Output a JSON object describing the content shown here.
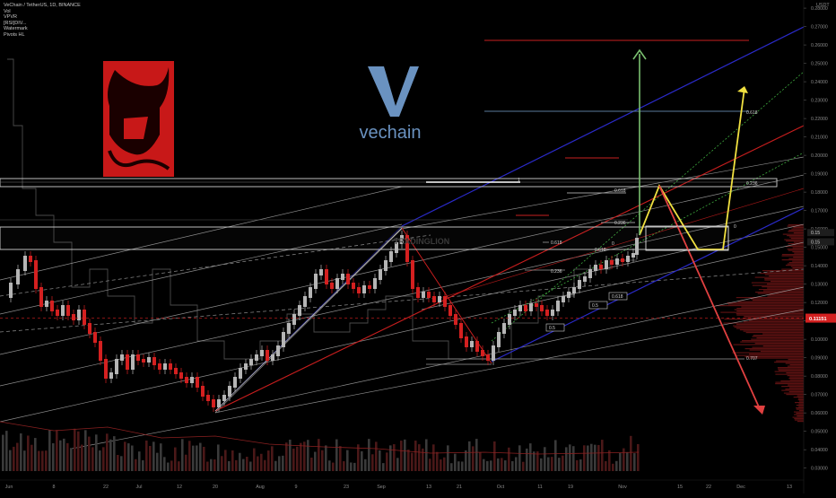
{
  "header": {
    "symbol_line": "VeChain / TetherUS, 1D, BINANCE",
    "studies": [
      "Vol",
      "VPVR",
      "[RSI]DIV...",
      "Watermark",
      "Pivots HL"
    ]
  },
  "brand": {
    "logo_text": "vechain",
    "watermark_text": "TRADINGLION"
  },
  "colors": {
    "background": "#000000",
    "bull": "#b5b5b5",
    "bear": "#d42020",
    "channel_blue": "#2a2ac8",
    "channel_red": "#c81e1e",
    "fib_green": "#3ea83e",
    "path_yellow": "#f0e040",
    "path_red": "#e04040",
    "arrow_green": "#7ac070",
    "price_tag": "#d42020"
  },
  "chart_data": {
    "type": "candlestick",
    "title": "VeChain / TetherUS, 1D, BINANCE",
    "ylim": [
      0.0235,
      0.2815
    ],
    "y_ticks": [
      0.28,
      0.27,
      0.26,
      0.25,
      0.24,
      0.23,
      0.22,
      0.21,
      0.2,
      0.19,
      0.18,
      0.17,
      0.16,
      0.15,
      0.14,
      0.13,
      0.12,
      0.11,
      0.1,
      0.09,
      0.08,
      0.07,
      0.06,
      0.05,
      0.04,
      0.03
    ],
    "y_tick_labels": [
      "0.28000",
      "0.27000",
      "0.26000",
      "0.25000",
      "0.24000",
      "0.23000",
      "0.22000",
      "0.21000",
      "0.20000",
      "0.19000",
      "0.18000",
      "0.17000",
      "0.16000",
      "0.15000",
      "0.14000",
      "0.13000",
      "0.12000",
      "0.11000",
      "0.10000",
      "0.09000",
      "0.08000",
      "0.07000",
      "0.06000",
      "0.05000",
      "0.04000",
      "0.03000"
    ],
    "axis_unit": "USDT",
    "x_labels": [
      "Jun",
      "8",
      "22",
      "Jul",
      "12",
      "20",
      "Aug",
      "9",
      "23",
      "Sep",
      "13",
      "21",
      "Oct",
      "11",
      "19",
      "Nov",
      "15",
      "22",
      "Dec",
      "13"
    ],
    "current_price": 0.11151,
    "current_price_label": "0.11151",
    "key_prices": [
      {
        "label": "0.15",
        "value": 0.158
      },
      {
        "label": "0.15",
        "value": 0.153
      }
    ],
    "highs_lows": {
      "high_sep": 0.156,
      "low_jul": 0.058,
      "low_sep": 0.082
    },
    "fib_levels": [
      {
        "label": "1",
        "value": 0.182
      },
      {
        "label": "0.236",
        "value": 0.182
      },
      {
        "label": "0.618",
        "value": 0.177
      },
      {
        "label": "0.618",
        "value": 0.222
      },
      {
        "label": "0.236",
        "value": 0.161
      },
      {
        "label": "0",
        "value": 0.159
      },
      {
        "label": "0.618",
        "value": 0.151
      },
      {
        "label": "0",
        "value": 0.15
      },
      {
        "label": "0.618",
        "value": 0.147
      },
      {
        "label": "0.236",
        "value": 0.135
      },
      {
        "label": "0.5",
        "value": 0.124
      },
      {
        "label": "0.618",
        "value": 0.121
      },
      {
        "label": "0.5",
        "value": 0.116
      },
      {
        "label": "0.5",
        "value": 0.105
      },
      {
        "label": "0.707",
        "value": 0.086
      }
    ],
    "candles_bias_note": "",
    "projections": {
      "yellow_path": [
        [
          0,
          0.151
        ],
        [
          1,
          0.182
        ],
        [
          2,
          0.146
        ],
        [
          3,
          0.146
        ],
        [
          4,
          0.237
        ]
      ],
      "red_path": [
        [
          0,
          0.182
        ],
        [
          1,
          0.058
        ]
      ],
      "green_target": 0.253
    }
  }
}
